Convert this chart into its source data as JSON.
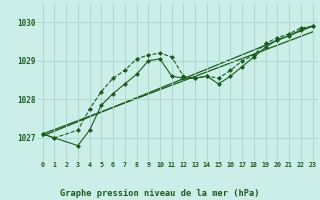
{
  "background_color": "#cceee8",
  "grid_color": "#aad4cc",
  "line_color": "#1a5c1a",
  "title": "Graphe pression niveau de la mer (hPa)",
  "ylabel_ticks": [
    1027,
    1028,
    1029,
    1030
  ],
  "xlim": [
    -0.5,
    23.5
  ],
  "ylim": [
    1026.4,
    1030.5
  ],
  "series1_x": [
    0,
    1,
    3,
    4,
    5,
    6,
    7,
    8,
    9,
    10,
    11,
    12,
    13,
    14,
    15,
    16,
    17,
    18,
    19,
    20,
    21,
    22,
    23
  ],
  "series1_y": [
    1027.1,
    1027.0,
    1027.2,
    1027.75,
    1028.2,
    1028.55,
    1028.75,
    1029.05,
    1029.15,
    1029.2,
    1029.1,
    1028.6,
    1028.55,
    1028.6,
    1028.55,
    1028.75,
    1029.0,
    1029.15,
    1029.45,
    1029.6,
    1029.7,
    1029.85,
    1029.9
  ],
  "series2_x": [
    0,
    1,
    3,
    4,
    5,
    6,
    7,
    8,
    9,
    10,
    11,
    12,
    13,
    14,
    15,
    16,
    17,
    18,
    19,
    20,
    21,
    22,
    23
  ],
  "series2_y": [
    1027.1,
    1027.0,
    1026.8,
    1027.2,
    1027.85,
    1028.15,
    1028.4,
    1028.65,
    1029.0,
    1029.05,
    1028.6,
    1028.55,
    1028.55,
    1028.6,
    1028.4,
    1028.6,
    1028.85,
    1029.1,
    1029.35,
    1029.55,
    1029.65,
    1029.8,
    1029.9
  ],
  "series3_x": [
    0,
    23
  ],
  "series3_y": [
    1027.05,
    1029.9
  ],
  "series4_x": [
    0,
    23
  ],
  "series4_y": [
    1027.1,
    1029.75
  ]
}
